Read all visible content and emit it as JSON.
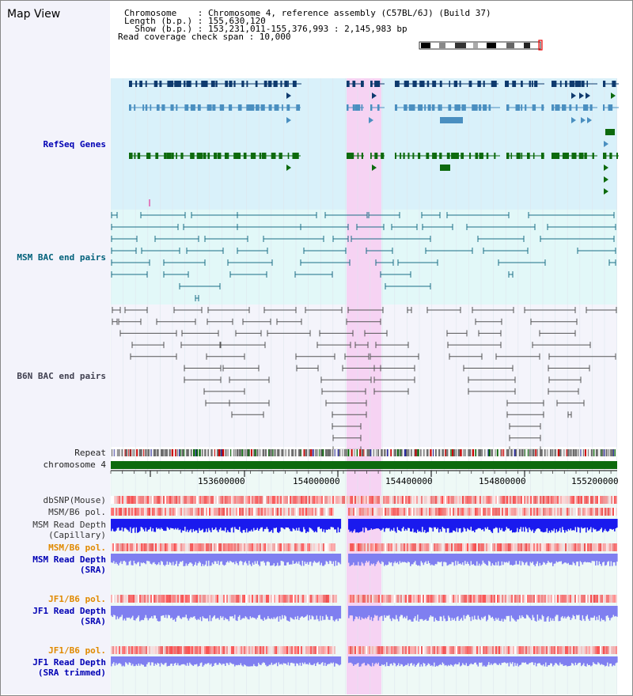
{
  "header": {
    "title": "Map View",
    "chromosome_line": "Chromosome    : Chromosome 4, reference assembly (C57BL/6J) (Build 37)",
    "length_line": "Length (b.p.) : 155,630,120",
    "show_line": "  Show (b.p.) : 153,231,011-155,376,993 : 2,145,983 bp",
    "coverage_line": "Read coverage check span : 10,000"
  },
  "tracks": {
    "refseq": "RefSeq Genes",
    "msm_bac": "MSM BAC end pairs",
    "b6n_bac": "B6N BAC end pairs",
    "repeat": "Repeat",
    "chromosome": "chromosome 4",
    "dbsnp": "dbSNP(Mouse)",
    "msm_pol": "MSM/B6 pol.",
    "msm_depth_cap_1": "MSM Read Depth",
    "msm_depth_cap_2": "(Capillary)",
    "msm_pol_sra": "MSM/B6 pol.",
    "msm_depth_sra_1": "MSM Read Depth",
    "msm_depth_sra_2": "(SRA)",
    "jf1_pol": "JF1/B6 pol.",
    "jf1_depth_1": "JF1 Read Depth",
    "jf1_depth_2": "(SRA)",
    "jf1_pol_trim": "JF1/B6 pol.",
    "jf1_depth_trim_1": "JF1 Read Depth",
    "jf1_depth_trim_2": "(SRA trimmed)"
  },
  "axis": {
    "ticks": [
      "153600000",
      "154000000",
      "154400000",
      "154800000",
      "155200000"
    ]
  },
  "colors": {
    "refseq_bg": "#d9f1fa",
    "msm_bg": "#e2f8f8",
    "b6n_bg": "#f4f4fb",
    "highlight": "#f6d3f3",
    "gene_navy": "#0e3a6e",
    "gene_light": "#4a8fc0",
    "gene_green": "#0d6a0d",
    "msm_line": "#1b6e86",
    "b6n_line": "#555555",
    "chromosome_bar": "#0d6a0d",
    "depth_blue": "#1a1aee",
    "depth_purple": "#7f7ff0"
  }
}
